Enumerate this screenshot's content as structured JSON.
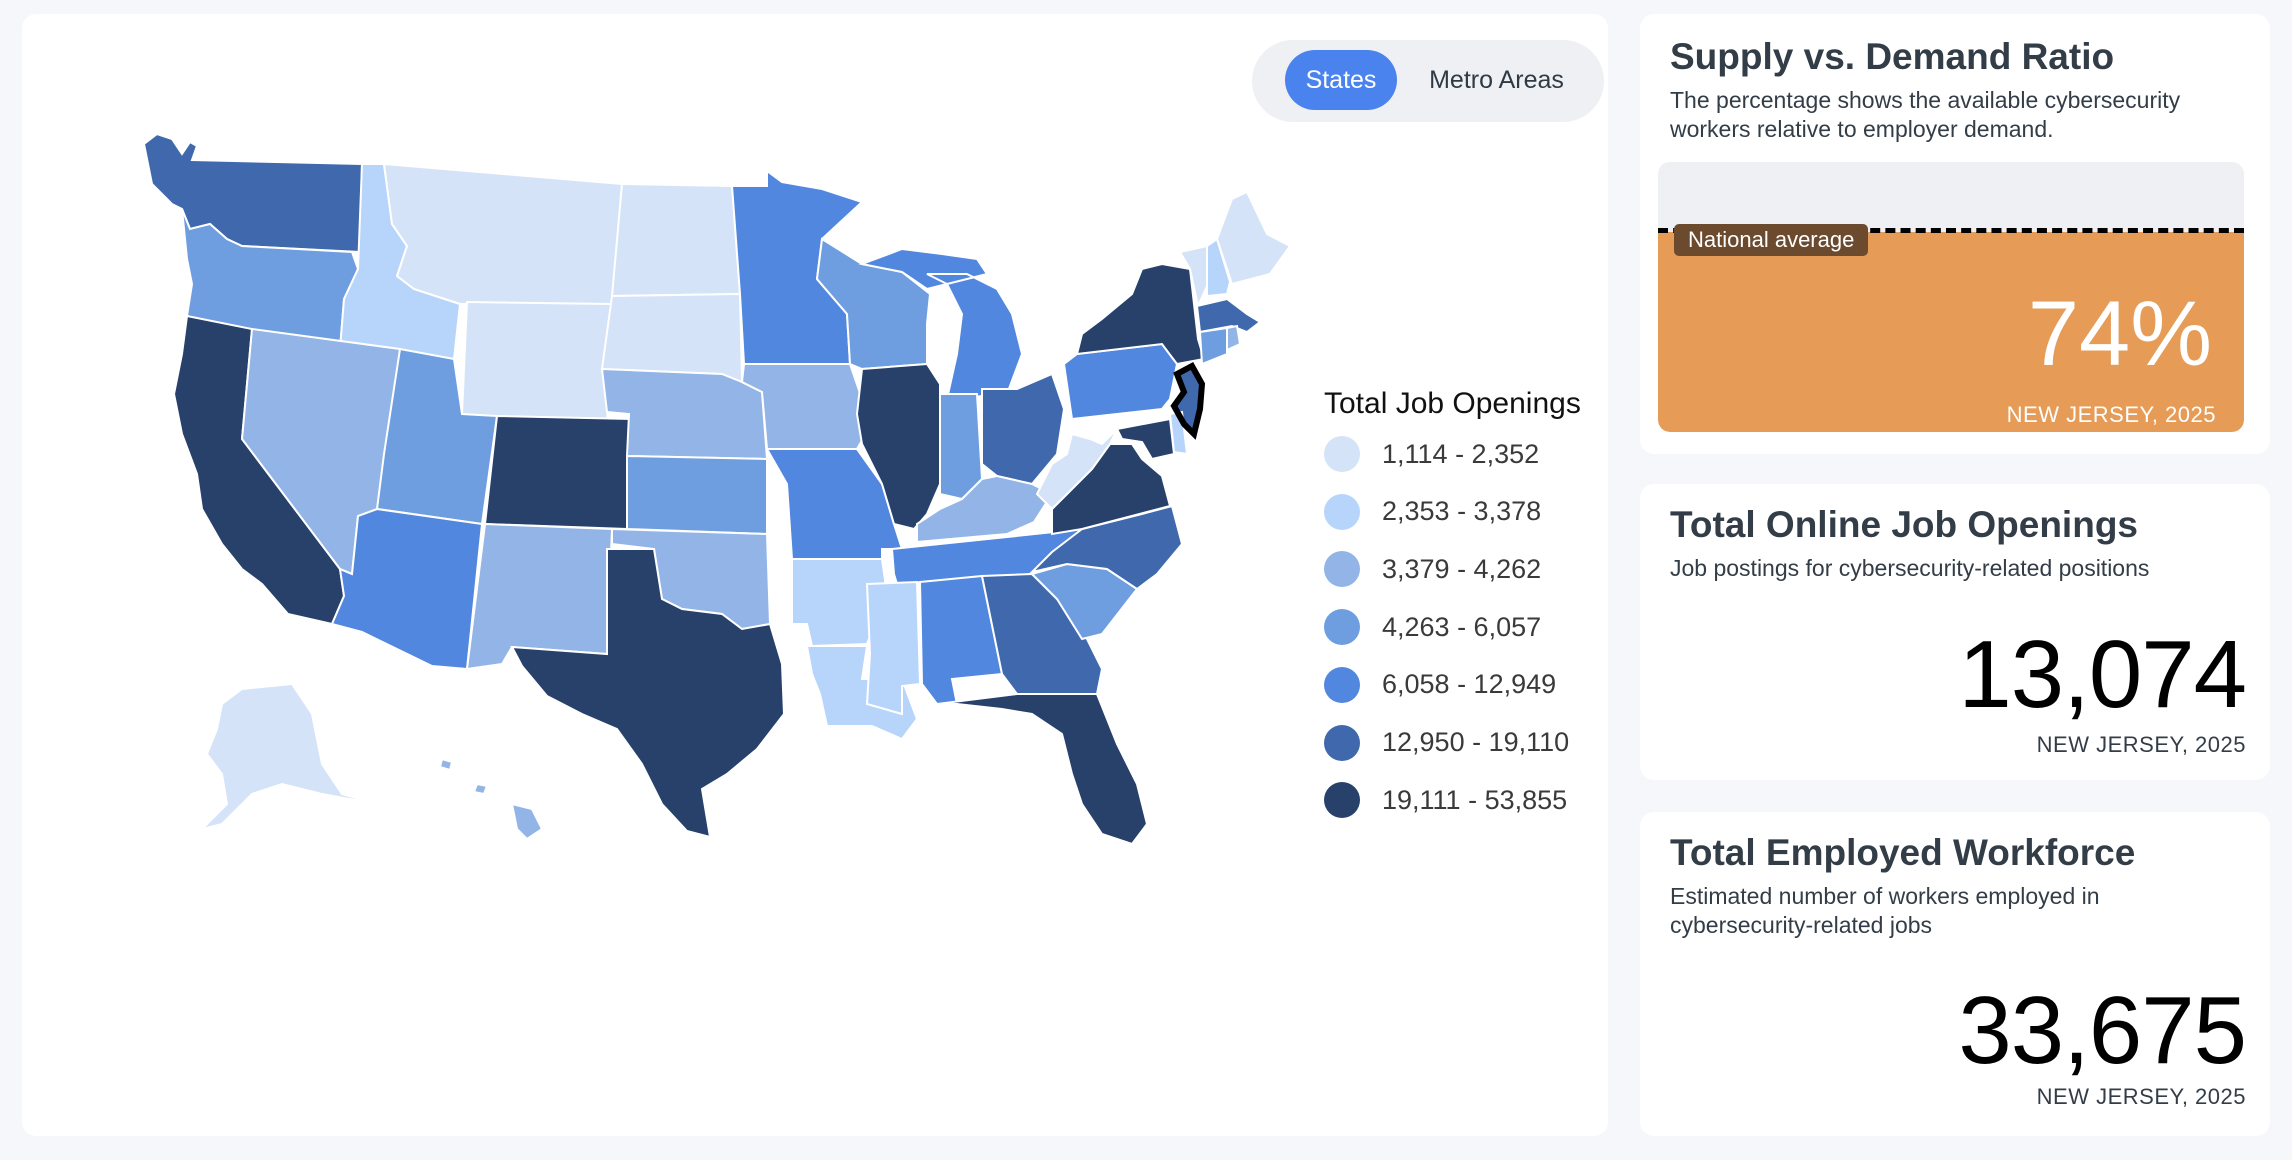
{
  "map": {
    "toggle": {
      "states_label": "States",
      "metro_label": "Metro Areas",
      "active": "States"
    },
    "selected_state": "NJ",
    "legend": {
      "title": "Total Job Openings",
      "bins": [
        {
          "label": "1,114 - 2,352",
          "color": "#d4e3f7"
        },
        {
          "label": "2,353 - 3,378",
          "color": "#b7d4fa"
        },
        {
          "label": "3,379 - 4,262",
          "color": "#93b4e6"
        },
        {
          "label": "4,263 - 6,057",
          "color": "#6e9ee0"
        },
        {
          "label": "6,058 - 12,949",
          "color": "#5187df"
        },
        {
          "label": "12,950 - 19,110",
          "color": "#3f69ac"
        },
        {
          "label": "19,111 - 53,855",
          "color": "#27416b"
        }
      ]
    },
    "state_bins": {
      "WA": 5,
      "OR": 3,
      "CA": 6,
      "ID": 1,
      "NV": 2,
      "MT": 0,
      "WY": 0,
      "UT": 3,
      "AZ": 4,
      "CO": 6,
      "NM": 2,
      "ND": 0,
      "SD": 0,
      "NE": 2,
      "KS": 3,
      "OK": 2,
      "TX": 6,
      "MN": 4,
      "IA": 2,
      "MO": 4,
      "AR": 1,
      "LA": 1,
      "WI": 3,
      "IL": 6,
      "MI": 4,
      "IN": 3,
      "OH": 5,
      "KY": 2,
      "TN": 4,
      "MS": 1,
      "AL": 4,
      "GA": 5,
      "FL": 6,
      "SC": 3,
      "NC": 5,
      "VA": 6,
      "WV": 0,
      "PA": 4,
      "NY": 6,
      "VT": 0,
      "NH": 1,
      "ME": 0,
      "MA": 5,
      "CT": 3,
      "RI": 2,
      "NJ": 5,
      "DE": 1,
      "MD": 6,
      "AK": 0,
      "HI": 2
    }
  },
  "ratio": {
    "title": "Supply vs. Demand Ratio",
    "description": "The percentage shows the available cybersecurity workers relative to employer demand.",
    "value_text": "74%",
    "value_fraction": 0.74,
    "national_average_fraction": 0.75,
    "national_average_label": "National average",
    "sublabel": "NEW JERSEY, 2025",
    "fill_color": "#e69c57"
  },
  "jobs": {
    "title": "Total Online Job Openings",
    "description": "Job postings for cybersecurity-related positions",
    "value": "13,074",
    "sublabel": "NEW JERSEY, 2025"
  },
  "workforce": {
    "title": "Total Employed Workforce",
    "description": "Estimated number of workers employed in cybersecurity-related jobs",
    "value": "33,675",
    "sublabel": "NEW JERSEY, 2025"
  }
}
